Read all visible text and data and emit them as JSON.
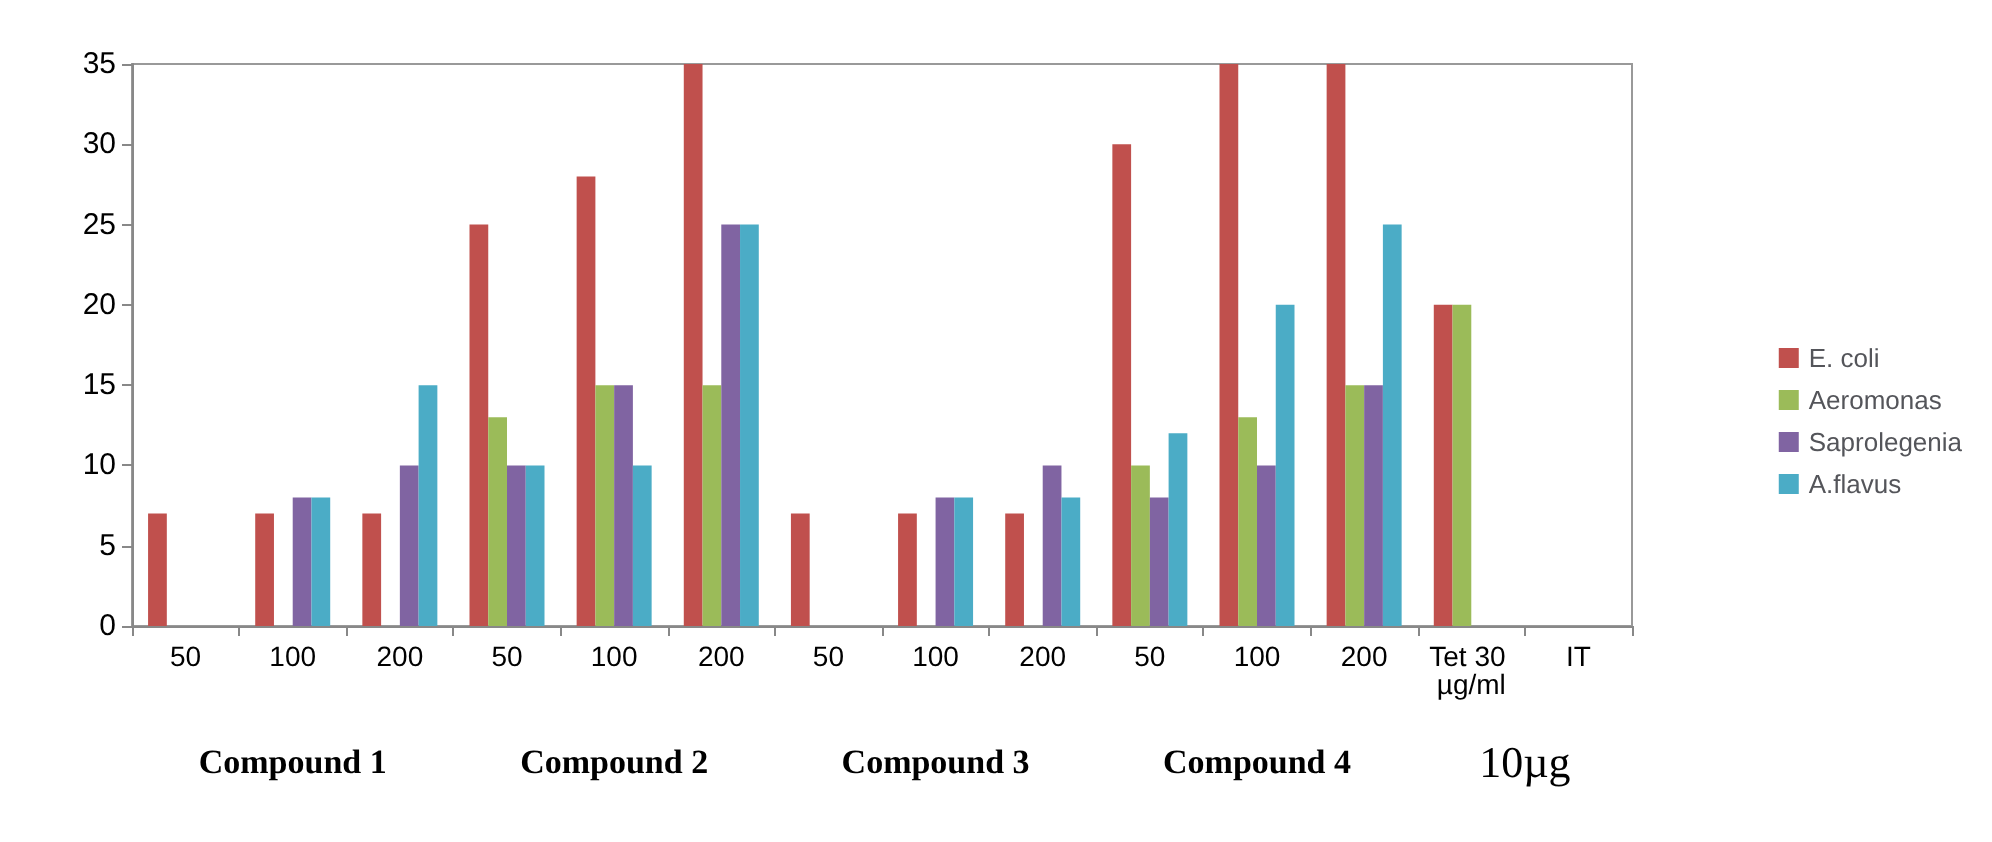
{
  "chart_data": {
    "type": "bar",
    "categories": [
      "50",
      "100",
      "200",
      "50",
      "100",
      "200",
      "50",
      "100",
      "200",
      "50",
      "100",
      "200",
      "Tet 30 µg/ml",
      "IT"
    ],
    "series": [
      {
        "name": "E. coli",
        "color": "#c0504d",
        "values": [
          7,
          7,
          7,
          25,
          28,
          35,
          7,
          7,
          7,
          30,
          35,
          35,
          20,
          0
        ]
      },
      {
        "name": "Aeromonas",
        "color": "#9bbb59",
        "values": [
          0,
          0,
          0,
          13,
          15,
          15,
          0,
          0,
          0,
          10,
          13,
          15,
          20,
          0
        ]
      },
      {
        "name": "Saprolegenia",
        "color": "#8064a2",
        "values": [
          0,
          8,
          10,
          10,
          15,
          25,
          0,
          8,
          10,
          8,
          10,
          15,
          0,
          0
        ]
      },
      {
        "name": "A.flavus",
        "color": "#4bacc6",
        "values": [
          0,
          8,
          15,
          10,
          10,
          25,
          0,
          8,
          8,
          12,
          20,
          25,
          0,
          0
        ]
      }
    ],
    "ylim": [
      0,
      35
    ],
    "yticks": [
      0,
      5,
      10,
      15,
      20,
      25,
      30,
      35
    ],
    "grid": false,
    "legend": "right",
    "annotations": [
      "Compound 1",
      "Compound 2",
      "Compound 3",
      "Compound 4",
      "10µg"
    ]
  }
}
